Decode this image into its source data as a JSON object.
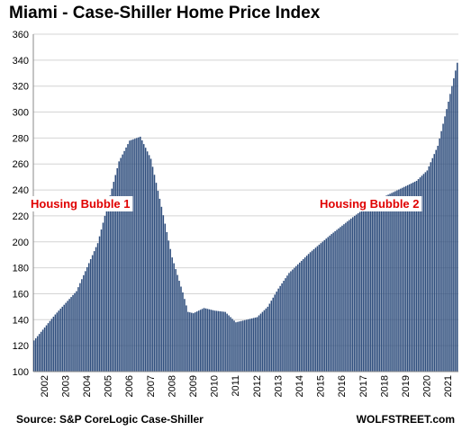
{
  "chart_data": {
    "type": "bar",
    "title": "Miami - Case-Shiller Home Price Index",
    "xlabel": "",
    "ylabel": "",
    "ylim": [
      100,
      360
    ],
    "yticks": [
      "100",
      "120",
      "140",
      "160",
      "180",
      "200",
      "220",
      "240",
      "260",
      "280",
      "300",
      "320",
      "340",
      "360"
    ],
    "year_labels": [
      "2002",
      "2003",
      "2004",
      "2005",
      "2006",
      "2007",
      "2008",
      "2009",
      "2010",
      "2011",
      "2012",
      "2013",
      "2014",
      "2015",
      "2016",
      "2017",
      "2018",
      "2019",
      "2020",
      "2021"
    ],
    "frequency": "monthly",
    "start": "2002-01",
    "end": "2021-12",
    "anchors": [
      {
        "date": "2002-01",
        "value": 124
      },
      {
        "date": "2003-01",
        "value": 144
      },
      {
        "date": "2004-01",
        "value": 162
      },
      {
        "date": "2005-01",
        "value": 199
      },
      {
        "date": "2006-01",
        "value": 262
      },
      {
        "date": "2006-07",
        "value": 278
      },
      {
        "date": "2007-01",
        "value": 281
      },
      {
        "date": "2007-07",
        "value": 264
      },
      {
        "date": "2008-01",
        "value": 227
      },
      {
        "date": "2008-07",
        "value": 188
      },
      {
        "date": "2009-01",
        "value": 161
      },
      {
        "date": "2009-04",
        "value": 146
      },
      {
        "date": "2009-07",
        "value": 145
      },
      {
        "date": "2010-01",
        "value": 149
      },
      {
        "date": "2010-07",
        "value": 147
      },
      {
        "date": "2011-01",
        "value": 146
      },
      {
        "date": "2011-07",
        "value": 138
      },
      {
        "date": "2012-01",
        "value": 140
      },
      {
        "date": "2012-07",
        "value": 142
      },
      {
        "date": "2013-01",
        "value": 150
      },
      {
        "date": "2013-07",
        "value": 164
      },
      {
        "date": "2014-01",
        "value": 176
      },
      {
        "date": "2015-01",
        "value": 192
      },
      {
        "date": "2016-01",
        "value": 206
      },
      {
        "date": "2017-01",
        "value": 219
      },
      {
        "date": "2018-01",
        "value": 231
      },
      {
        "date": "2019-01",
        "value": 239
      },
      {
        "date": "2020-01",
        "value": 247
      },
      {
        "date": "2020-07",
        "value": 255
      },
      {
        "date": "2021-01",
        "value": 274
      },
      {
        "date": "2021-07",
        "value": 308
      },
      {
        "date": "2021-12",
        "value": 338
      }
    ],
    "annotations": [
      "Housing Bubble 1",
      "Housing Bubble 2"
    ],
    "grid": true,
    "bar_color": "#2f4e7d"
  },
  "footer": {
    "source": "Source: S&P CoreLogic Case-Shiller",
    "brand": "WOLFSTREET.com"
  }
}
